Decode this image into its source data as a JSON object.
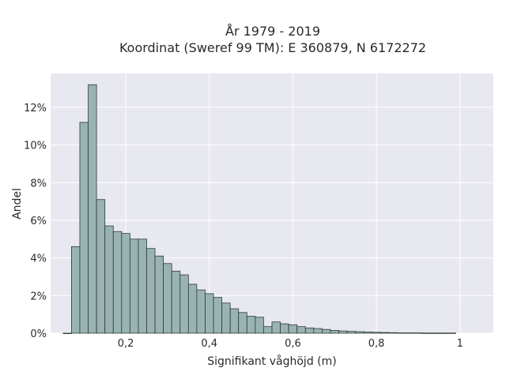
{
  "chart_data": {
    "type": "bar",
    "title": "År 1979 - 2019",
    "subtitle": "Koordinat (Sweref 99 TM): E 360879, N 6172272",
    "xlabel": "Signifikant våghöjd (m)",
    "ylabel": "Andel",
    "xlim": [
      0.02,
      1.08
    ],
    "ylim": [
      0,
      13.8
    ],
    "x_ticks": [
      0.2,
      0.4,
      0.6,
      0.8,
      1.0
    ],
    "x_tick_labels": [
      "0,2",
      "0,4",
      "0,6",
      "0,8",
      "1"
    ],
    "y_ticks": [
      0,
      2,
      4,
      6,
      8,
      10,
      12
    ],
    "y_tick_labels": [
      "0%",
      "2%",
      "4%",
      "6%",
      "8%",
      "10%",
      "12%"
    ],
    "bin_start": 0.05,
    "bin_width": 0.02,
    "values": [
      0.0,
      4.6,
      11.2,
      13.2,
      7.1,
      5.7,
      5.4,
      5.3,
      5.0,
      5.0,
      4.5,
      4.1,
      3.7,
      3.3,
      3.1,
      2.6,
      2.3,
      2.1,
      1.9,
      1.6,
      1.3,
      1.1,
      0.9,
      0.85,
      0.35,
      0.6,
      0.5,
      0.45,
      0.35,
      0.28,
      0.25,
      0.2,
      0.15,
      0.12,
      0.1,
      0.08,
      0.06,
      0.05,
      0.04,
      0.03,
      0.02,
      0.02,
      0.02,
      0.01,
      0.01,
      0.01,
      0.01
    ],
    "grid": true,
    "colors": {
      "bar_fill": "#99b3b3",
      "bar_edge": "#2f3a3a",
      "plot_bg": "#e8e8f0",
      "grid": "#ffffff"
    }
  }
}
